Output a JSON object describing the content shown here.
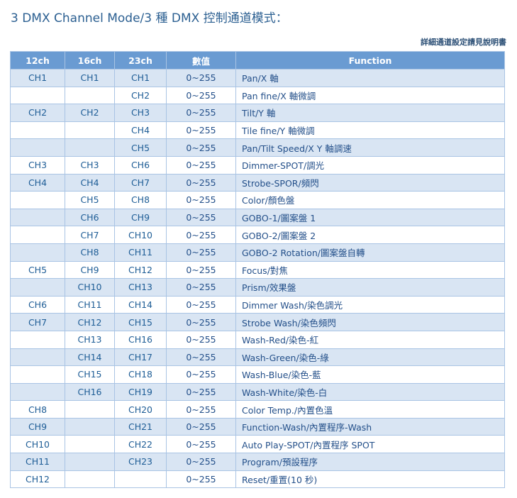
{
  "title": "3 DMX Channel Mode/3 種 DMX 控制通道模式：",
  "note": "詳細通道設定請見說明書",
  "table": {
    "headers": [
      "12ch",
      "16ch",
      "23ch",
      "數值",
      "Function"
    ],
    "rows": [
      [
        "CH1",
        "CH1",
        "CH1",
        "0~255",
        "Pan/X 軸"
      ],
      [
        "",
        "",
        "CH2",
        "0~255",
        "Pan fine/X 軸微調"
      ],
      [
        "CH2",
        "CH2",
        "CH3",
        "0~255",
        "Tilt/Y 軸"
      ],
      [
        "",
        "",
        "CH4",
        "0~255",
        "Tile fine/Y 軸微調"
      ],
      [
        "",
        "",
        "CH5",
        "0~255",
        "Pan/Tilt Speed/X Y 軸調速"
      ],
      [
        "CH3",
        "CH3",
        "CH6",
        "0~255",
        "Dimmer-SPOT/調光"
      ],
      [
        "CH4",
        "CH4",
        "CH7",
        "0~255",
        "Strobe-SPOR/頻閃"
      ],
      [
        "",
        "CH5",
        "CH8",
        "0~255",
        "Color/顏色盤"
      ],
      [
        "",
        "CH6",
        "CH9",
        "0~255",
        "GOBO-1/圖案盤 1"
      ],
      [
        "",
        "CH7",
        "CH10",
        "0~255",
        "GOBO-2/圖案盤 2"
      ],
      [
        "",
        "CH8",
        "CH11",
        "0~255",
        "GOBO-2 Rotation/圖案盤自轉"
      ],
      [
        "CH5",
        "CH9",
        "CH12",
        "0~255",
        "Focus/對焦"
      ],
      [
        "",
        "CH10",
        "CH13",
        "0~255",
        "Prism/效果盤"
      ],
      [
        "CH6",
        "CH11",
        "CH14",
        "0~255",
        "Dimmer Wash/染色調光"
      ],
      [
        "CH7",
        "CH12",
        "CH15",
        "0~255",
        "Strobe Wash/染色頻閃"
      ],
      [
        "",
        "CH13",
        "CH16",
        "0~255",
        "Wash-Red/染色-紅"
      ],
      [
        "",
        "CH14",
        "CH17",
        "0~255",
        "Wash-Green/染色-綠"
      ],
      [
        "",
        "CH15",
        "CH18",
        "0~255",
        "Wash-Blue/染色-藍"
      ],
      [
        "",
        "CH16",
        "CH19",
        "0~255",
        "Wash-White/染色-白"
      ],
      [
        "CH8",
        "",
        "CH20",
        "0~255",
        "Color Temp./內置色溫"
      ],
      [
        "CH9",
        "",
        "CH21",
        "0~255",
        "Function-Wash/內置程序-Wash"
      ],
      [
        "CH10",
        "",
        "CH22",
        "0~255",
        "Auto Play-SPOT/內置程序 SPOT"
      ],
      [
        "CH11",
        "",
        "CH23",
        "0~255",
        "Program/預設程序"
      ],
      [
        "CH12",
        "",
        "",
        "0~255",
        "Reset/重置(10 秒)"
      ]
    ]
  }
}
